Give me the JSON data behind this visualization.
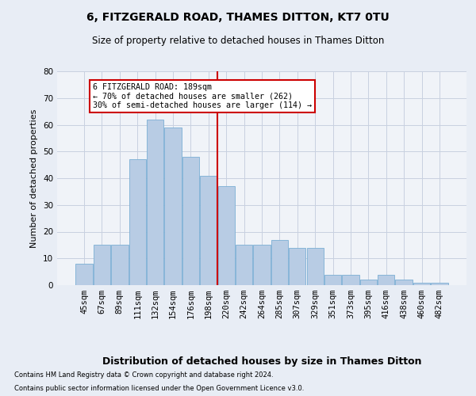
{
  "title": "6, FITZGERALD ROAD, THAMES DITTON, KT7 0TU",
  "subtitle": "Size of property relative to detached houses in Thames Ditton",
  "xlabel": "Distribution of detached houses by size in Thames Ditton",
  "ylabel": "Number of detached properties",
  "categories": [
    "45sqm",
    "67sqm",
    "89sqm",
    "111sqm",
    "132sqm",
    "154sqm",
    "176sqm",
    "198sqm",
    "220sqm",
    "242sqm",
    "264sqm",
    "285sqm",
    "307sqm",
    "329sqm",
    "351sqm",
    "373sqm",
    "395sqm",
    "416sqm",
    "438sqm",
    "460sqm",
    "482sqm"
  ],
  "values": [
    8,
    15,
    15,
    47,
    62,
    59,
    48,
    41,
    37,
    15,
    15,
    17,
    14,
    14,
    4,
    4,
    2,
    4,
    2,
    1,
    1
  ],
  "bar_color": "#b8cce4",
  "bar_edge_color": "#7bafd4",
  "vline_x": 7.5,
  "vline_color": "#cc0000",
  "annotation_text": "6 FITZGERALD ROAD: 189sqm\n← 70% of detached houses are smaller (262)\n30% of semi-detached houses are larger (114) →",
  "annotation_box_color": "#ffffff",
  "annotation_box_edge": "#cc0000",
  "ylim": [
    0,
    80
  ],
  "yticks": [
    0,
    10,
    20,
    30,
    40,
    50,
    60,
    70,
    80
  ],
  "footer1": "Contains HM Land Registry data © Crown copyright and database right 2024.",
  "footer2": "Contains public sector information licensed under the Open Government Licence v3.0.",
  "bg_color": "#e8edf5",
  "plot_bg_color": "#f0f3f8",
  "grid_color": "#c8d0e0",
  "title_fontsize": 10,
  "subtitle_fontsize": 8.5,
  "axis_label_fontsize": 8,
  "tick_fontsize": 7.5
}
